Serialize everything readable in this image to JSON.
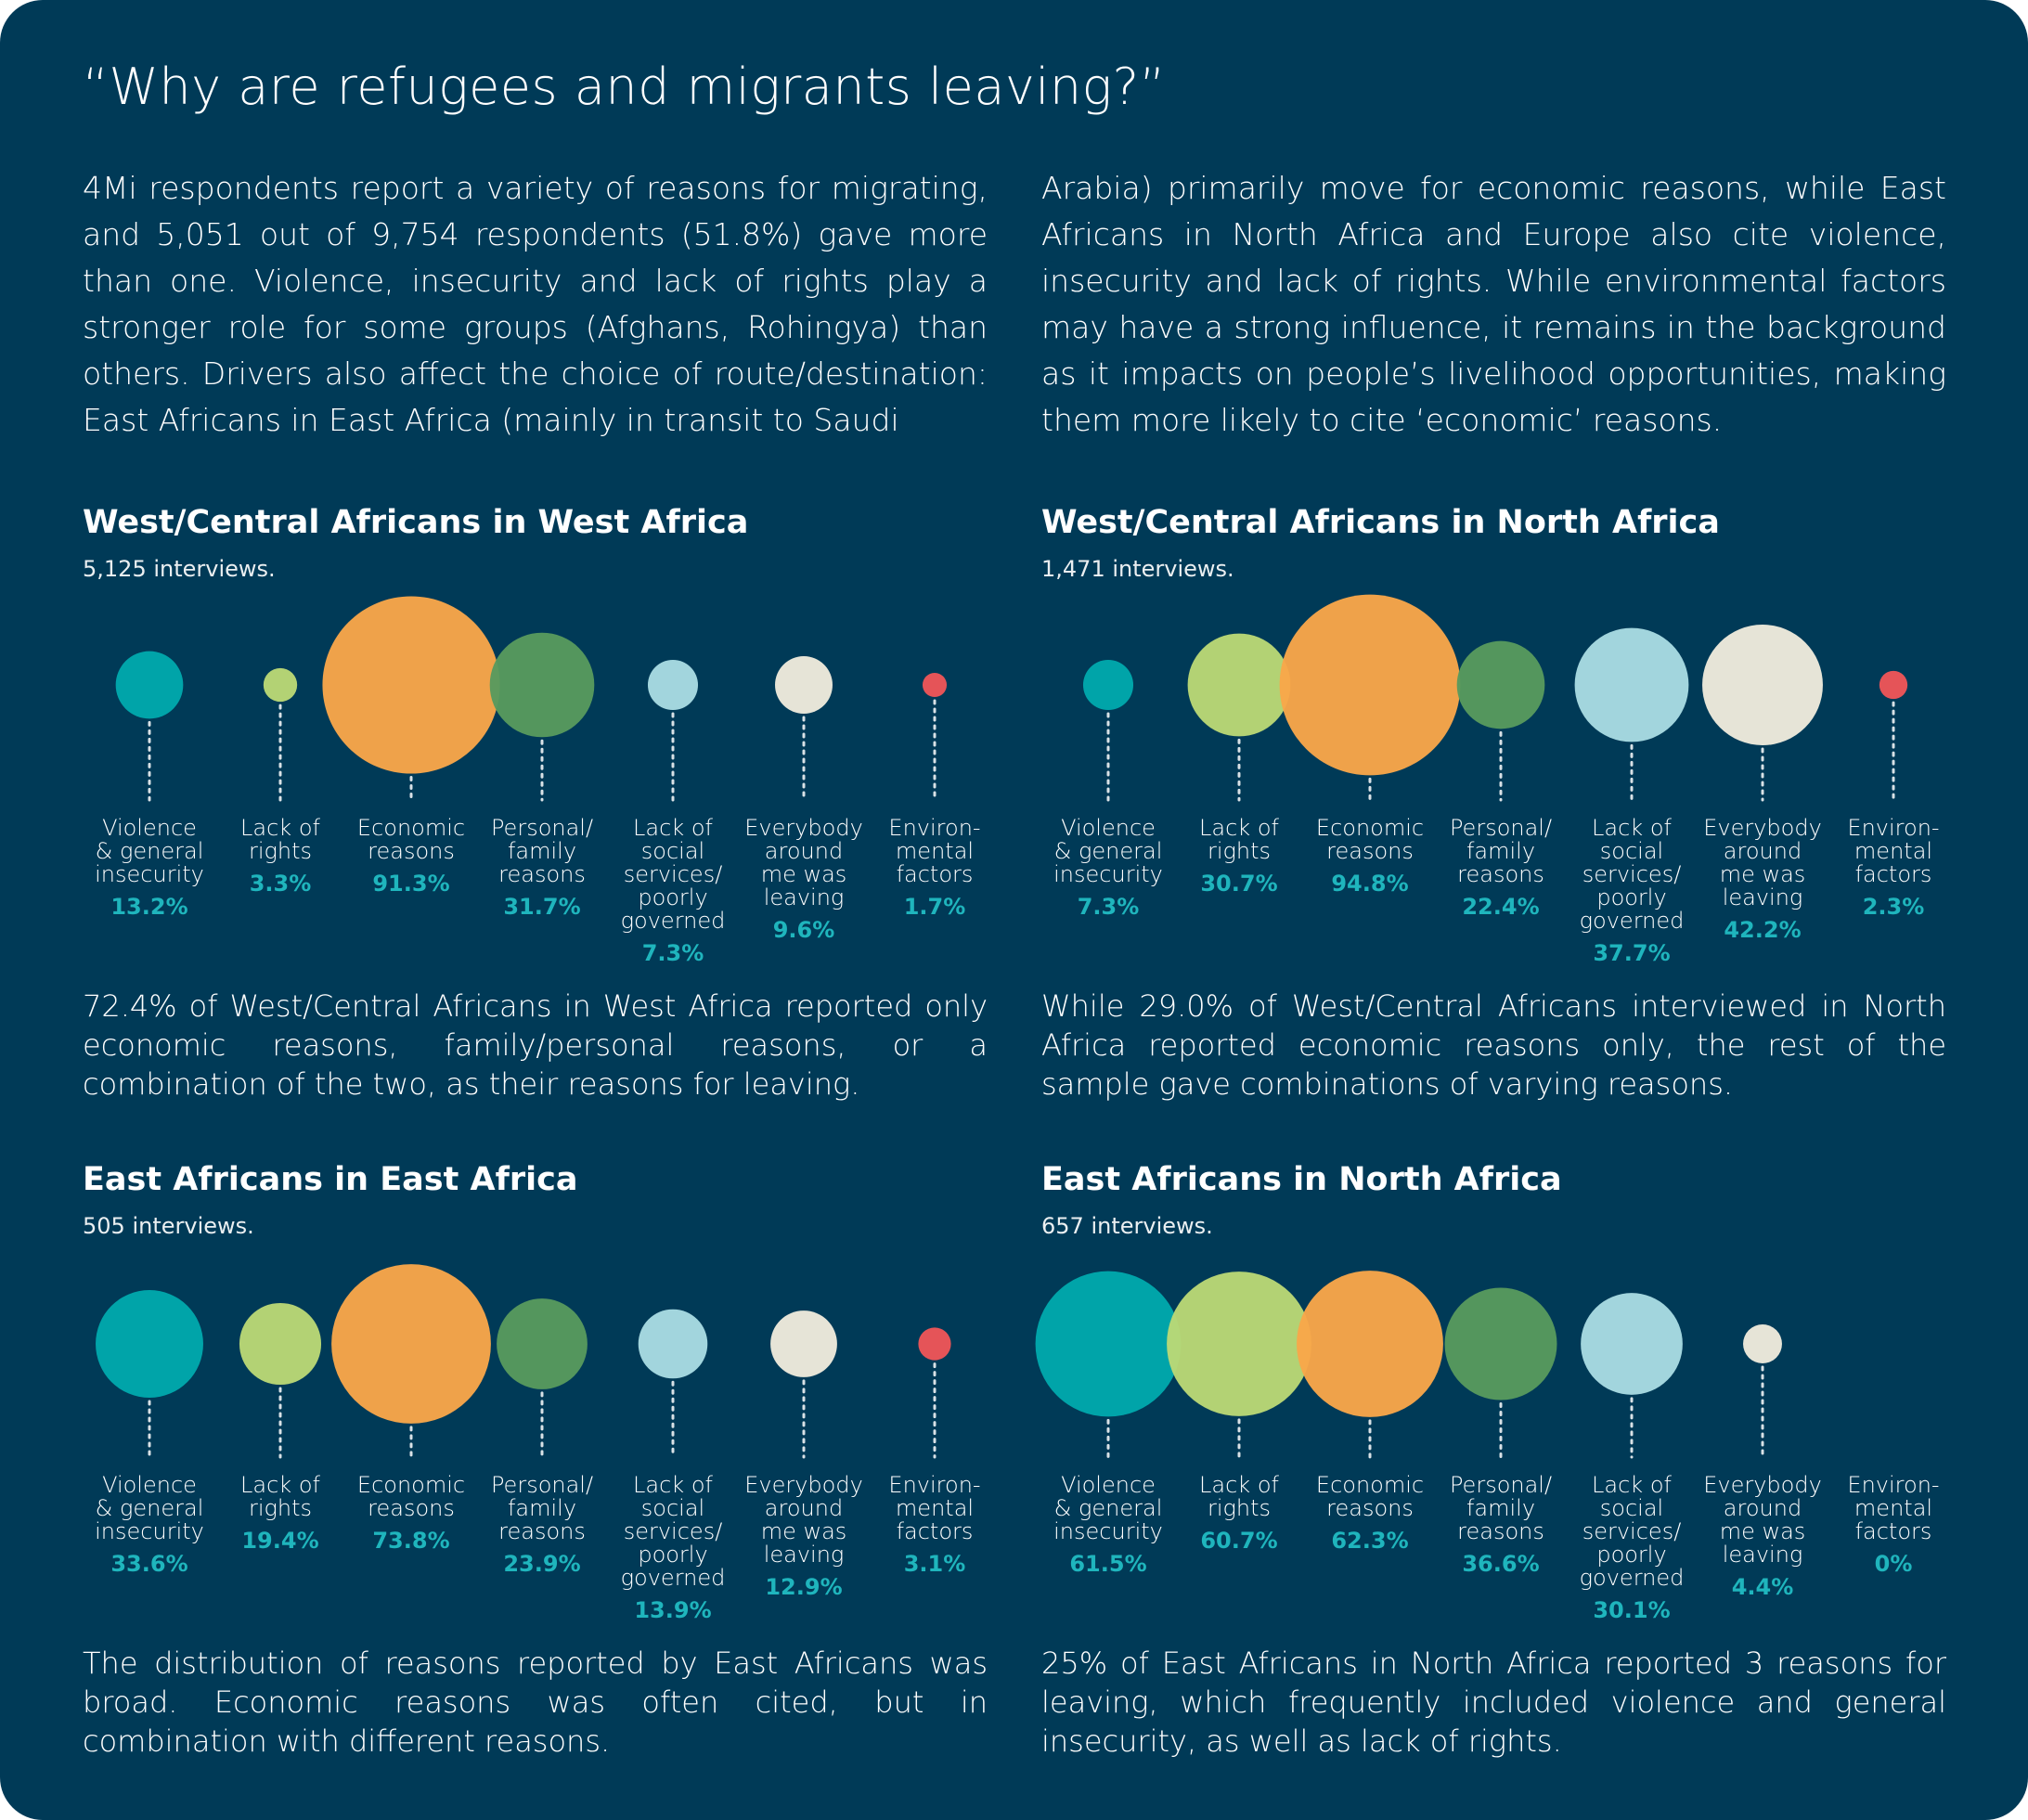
{
  "title": "“Why are refugees and migrants leaving?”",
  "intro": {
    "left": "4Mi respondents report a variety of reasons for migrating, and 5,051 out of 9,754 respondents (51.8%) gave more than one. Violence, insecurity and lack of rights play a stronger role for some groups (Afghans, Rohingya) than others. Drivers also affect the choice of route/destination: East Africans in East Africa (mainly in transit to Saudi",
    "right": "Arabia) primarily move for economic reasons, while East Africans in North Africa and Europe also cite violence, insecurity and lack of rights. While environmental factors may have a strong influence, it remains in the background as it impacts on people’s livelihood opportunities, making them more likely to cite ‘economic’ reasons."
  },
  "colors": {
    "background": "#003a57",
    "percent_text": "#1fb5bd",
    "violence": "#00a9ad",
    "rights": "#bad976",
    "economic": "#f9a74a",
    "family": "#579a5e",
    "services": "#a9dce3",
    "everybody": "#efebdd",
    "environmental": "#ee5558"
  },
  "chart_data": [
    {
      "type": "bubble",
      "title": "West/Central Africans in West Africa",
      "subtitle": "5,125 interviews.",
      "categories": [
        "Violence\n& general\ninsecurity",
        "Lack of\nrights",
        "Economic\nreasons",
        "Personal/\nfamily\nreasons",
        "Lack of\nsocial\nservices/\npoorly\ngoverned",
        "Everybody\naround\nme was\nleaving",
        "Environ-\nmental\nfactors"
      ],
      "values": [
        13.2,
        3.3,
        91.3,
        31.7,
        7.3,
        9.6,
        1.7
      ],
      "labels": [
        "13.2%",
        "3.3%",
        "91.3%",
        "31.7%",
        "7.3%",
        "9.6%",
        "1.7%"
      ],
      "summary": "72.4% of West/Central Africans in West Africa reported only economic reasons, family/personal reasons, or a combination of the two, as their reasons for leaving."
    },
    {
      "type": "bubble",
      "title": "West/Central Africans in North Africa",
      "subtitle": "1,471 interviews.",
      "categories": [
        "Violence\n& general\ninsecurity",
        "Lack of\nrights",
        "Economic\nreasons",
        "Personal/\nfamily\nreasons",
        "Lack of\nsocial\nservices/\npoorly\ngoverned",
        "Everybody\naround\nme was\nleaving",
        "Environ-\nmental\nfactors"
      ],
      "values": [
        7.3,
        30.7,
        94.8,
        22.4,
        37.7,
        42.2,
        2.3
      ],
      "labels": [
        "7.3%",
        "30.7%",
        "94.8%",
        "22.4%",
        "37.7%",
        "42.2%",
        "2.3%"
      ],
      "summary": "While 29.0% of West/Central Africans interviewed in North Africa reported economic reasons only, the rest of the sample gave combinations of varying reasons."
    },
    {
      "type": "bubble",
      "title": "East Africans in East Africa",
      "subtitle": "505 interviews.",
      "categories": [
        "Violence\n& general\ninsecurity",
        "Lack of\nrights",
        "Economic\nreasons",
        "Personal/\nfamily\nreasons",
        "Lack of\nsocial\nservices/\npoorly\ngoverned",
        "Everybody\naround\nme was\nleaving",
        "Environ-\nmental\nfactors"
      ],
      "values": [
        33.6,
        19.4,
        73.8,
        23.9,
        13.9,
        12.9,
        3.1
      ],
      "labels": [
        "33.6%",
        "19.4%",
        "73.8%",
        "23.9%",
        "13.9%",
        "12.9%",
        "3.1%"
      ],
      "summary": "The distribution of reasons reported by East Africans was broad. Economic reasons was often cited, but in combination with different reasons."
    },
    {
      "type": "bubble",
      "title": "East Africans in North Africa",
      "subtitle": "657 interviews.",
      "categories": [
        "Violence\n& general\ninsecurity",
        "Lack of\nrights",
        "Economic\nreasons",
        "Personal/\nfamily\nreasons",
        "Lack of\nsocial\nservices/\npoorly\ngoverned",
        "Everybody\naround\nme was\nleaving",
        "Environ-\nmental\nfactors"
      ],
      "values": [
        61.5,
        60.7,
        62.3,
        36.6,
        30.1,
        4.4,
        0
      ],
      "labels": [
        "61.5%",
        "60.7%",
        "62.3%",
        "36.6%",
        "30.1%",
        "4.4%",
        "0%"
      ],
      "summary": "25% of East Africans in North Africa reported 3 reasons for leaving, which frequently included violence and general insecurity, as well as lack of rights."
    }
  ]
}
